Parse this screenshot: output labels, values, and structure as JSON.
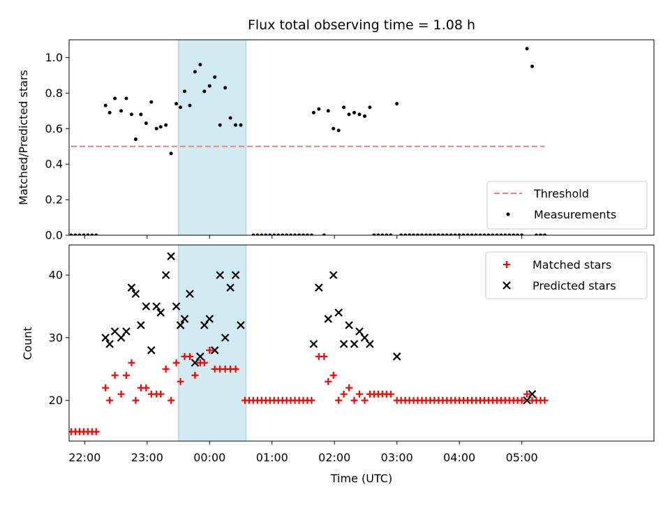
{
  "chart_data": [
    {
      "type": "scatter",
      "title": "Flux total observing time = 1.08 h",
      "ylabel": "Matched/Predicted stars",
      "ylim": [
        0,
        1.1
      ],
      "yticks": [
        0.0,
        0.2,
        0.4,
        0.6,
        0.8,
        1.0
      ],
      "ytick_labels": [
        "0.0",
        "0.2",
        "0.4",
        "0.6",
        "0.8",
        "1.0"
      ],
      "xlim": [
        -135,
        427
      ],
      "x_unit": "minutes relative to 00:00 UTC",
      "shaded_span": [
        -30,
        35
      ],
      "shaded_color": "#add8e6",
      "threshold": {
        "name": "Threshold",
        "value": 0.5,
        "x_range": [
          -133,
          322
        ],
        "color": "#f08080"
      },
      "legend": {
        "position": "lower-right",
        "entries": [
          "Threshold",
          "Measurements"
        ]
      },
      "series": [
        {
          "name": "Measurements",
          "color": "#000000",
          "points": [
            [
              -133,
              0
            ],
            [
              -129,
              0
            ],
            [
              -125,
              0
            ],
            [
              -121,
              0
            ],
            [
              -117,
              0
            ],
            [
              -113,
              0
            ],
            [
              -109,
              0
            ],
            [
              -100,
              0.73
            ],
            [
              -96,
              0.69
            ],
            [
              -91,
              0.77
            ],
            [
              -85,
              0.7
            ],
            [
              -80,
              0.77
            ],
            [
              -75,
              0.68
            ],
            [
              -71,
              0.54
            ],
            [
              -66,
              0.68
            ],
            [
              -61,
              0.63
            ],
            [
              -56,
              0.75
            ],
            [
              -51,
              0.6
            ],
            [
              -47,
              0.61
            ],
            [
              -42,
              0.62
            ],
            [
              -37,
              0.46
            ],
            [
              -32,
              0.74
            ],
            [
              -28,
              0.72
            ],
            [
              -24,
              0.81
            ],
            [
              -19,
              0.73
            ],
            [
              -14,
              0.92
            ],
            [
              -9,
              0.96
            ],
            [
              -5,
              0.81
            ],
            [
              0,
              0.84
            ],
            [
              5,
              0.89
            ],
            [
              10,
              0.62
            ],
            [
              15,
              0.83
            ],
            [
              20,
              0.66
            ],
            [
              25,
              0.62
            ],
            [
              30,
              0.62
            ],
            [
              42,
              0
            ],
            [
              46,
              0
            ],
            [
              50,
              0
            ],
            [
              54,
              0
            ],
            [
              58,
              0
            ],
            [
              62,
              0
            ],
            [
              66,
              0
            ],
            [
              70,
              0
            ],
            [
              74,
              0
            ],
            [
              78,
              0
            ],
            [
              82,
              0
            ],
            [
              86,
              0
            ],
            [
              90,
              0
            ],
            [
              94,
              0
            ],
            [
              98,
              0
            ],
            [
              100,
              0.69
            ],
            [
              105,
              0.71
            ],
            [
              110,
              0
            ],
            [
              114,
              0.7
            ],
            [
              119,
              0.6
            ],
            [
              124,
              0.59
            ],
            [
              129,
              0.72
            ],
            [
              134,
              0.68
            ],
            [
              139,
              0.69
            ],
            [
              144,
              0.68
            ],
            [
              149,
              0.67
            ],
            [
              154,
              0.72
            ],
            [
              158,
              0
            ],
            [
              162,
              0
            ],
            [
              166,
              0
            ],
            [
              170,
              0
            ],
            [
              174,
              0
            ],
            [
              180,
              0.74
            ],
            [
              184,
              0
            ],
            [
              188,
              0
            ],
            [
              192,
              0
            ],
            [
              196,
              0
            ],
            [
              200,
              0
            ],
            [
              204,
              0
            ],
            [
              208,
              0
            ],
            [
              212,
              0
            ],
            [
              216,
              0
            ],
            [
              220,
              0
            ],
            [
              224,
              0
            ],
            [
              228,
              0
            ],
            [
              232,
              0
            ],
            [
              236,
              0
            ],
            [
              240,
              0
            ],
            [
              244,
              0
            ],
            [
              248,
              0
            ],
            [
              252,
              0
            ],
            [
              256,
              0
            ],
            [
              260,
              0
            ],
            [
              264,
              0
            ],
            [
              268,
              0
            ],
            [
              272,
              0
            ],
            [
              276,
              0
            ],
            [
              280,
              0
            ],
            [
              284,
              0
            ],
            [
              288,
              0
            ],
            [
              292,
              0
            ],
            [
              296,
              0
            ],
            [
              300,
              0
            ],
            [
              305,
              1.05
            ],
            [
              310,
              0.95
            ],
            [
              314,
              0
            ],
            [
              318,
              0
            ],
            [
              322,
              0
            ]
          ]
        }
      ]
    },
    {
      "type": "scatter",
      "xlabel": "Time (UTC)",
      "ylabel": "Count",
      "ylim": [
        13.5,
        44.8
      ],
      "yticks": [
        20,
        30,
        40
      ],
      "ytick_labels": [
        "20",
        "30",
        "40"
      ],
      "xlim": [
        -135,
        427
      ],
      "x_unit": "minutes relative to 00:00 UTC",
      "xticks": [
        -120,
        -60,
        0,
        60,
        120,
        180,
        240,
        300
      ],
      "xtick_labels": [
        "22:00",
        "23:00",
        "00:00",
        "01:00",
        "02:00",
        "03:00",
        "04:00",
        "05:00"
      ],
      "shaded_span": [
        -30,
        35
      ],
      "shaded_color": "#add8e6",
      "legend": {
        "position": "top-right",
        "entries": [
          "Matched stars",
          "Predicted stars"
        ]
      },
      "series": [
        {
          "name": "Matched stars",
          "marker": "plus",
          "color": "#ff0000",
          "points": [
            [
              -133,
              15
            ],
            [
              -129,
              15
            ],
            [
              -125,
              15
            ],
            [
              -121,
              15
            ],
            [
              -117,
              15
            ],
            [
              -113,
              15
            ],
            [
              -109,
              15
            ],
            [
              -100,
              22
            ],
            [
              -96,
              20
            ],
            [
              -91,
              24
            ],
            [
              -85,
              21
            ],
            [
              -80,
              24
            ],
            [
              -75,
              26
            ],
            [
              -71,
              20
            ],
            [
              -66,
              22
            ],
            [
              -61,
              22
            ],
            [
              -56,
              21
            ],
            [
              -51,
              21
            ],
            [
              -47,
              21
            ],
            [
              -42,
              25
            ],
            [
              -37,
              20
            ],
            [
              -32,
              26
            ],
            [
              -28,
              23
            ],
            [
              -24,
              27
            ],
            [
              -19,
              27
            ],
            [
              -14,
              24
            ],
            [
              -9,
              26
            ],
            [
              -5,
              26
            ],
            [
              0,
              28
            ],
            [
              5,
              25
            ],
            [
              10,
              25
            ],
            [
              15,
              25
            ],
            [
              20,
              25
            ],
            [
              25,
              25
            ],
            [
              34,
              20
            ],
            [
              38,
              20
            ],
            [
              42,
              20
            ],
            [
              46,
              20
            ],
            [
              50,
              20
            ],
            [
              54,
              20
            ],
            [
              58,
              20
            ],
            [
              62,
              20
            ],
            [
              66,
              20
            ],
            [
              70,
              20
            ],
            [
              74,
              20
            ],
            [
              78,
              20
            ],
            [
              82,
              20
            ],
            [
              86,
              20
            ],
            [
              90,
              20
            ],
            [
              94,
              20
            ],
            [
              98,
              20
            ],
            [
              105,
              27
            ],
            [
              110,
              27
            ],
            [
              114,
              23
            ],
            [
              119,
              24
            ],
            [
              124,
              20
            ],
            [
              129,
              21
            ],
            [
              134,
              22
            ],
            [
              139,
              20
            ],
            [
              144,
              21
            ],
            [
              149,
              20
            ],
            [
              154,
              21
            ],
            [
              158,
              21
            ],
            [
              162,
              21
            ],
            [
              166,
              21
            ],
            [
              170,
              21
            ],
            [
              174,
              21
            ],
            [
              180,
              20
            ],
            [
              184,
              20
            ],
            [
              188,
              20
            ],
            [
              192,
              20
            ],
            [
              196,
              20
            ],
            [
              200,
              20
            ],
            [
              204,
              20
            ],
            [
              208,
              20
            ],
            [
              212,
              20
            ],
            [
              216,
              20
            ],
            [
              220,
              20
            ],
            [
              224,
              20
            ],
            [
              228,
              20
            ],
            [
              232,
              20
            ],
            [
              236,
              20
            ],
            [
              240,
              20
            ],
            [
              244,
              20
            ],
            [
              248,
              20
            ],
            [
              252,
              20
            ],
            [
              256,
              20
            ],
            [
              260,
              20
            ],
            [
              264,
              20
            ],
            [
              268,
              20
            ],
            [
              272,
              20
            ],
            [
              276,
              20
            ],
            [
              280,
              20
            ],
            [
              284,
              20
            ],
            [
              288,
              20
            ],
            [
              292,
              20
            ],
            [
              296,
              20
            ],
            [
              300,
              20
            ],
            [
              305,
              21
            ],
            [
              310,
              20
            ],
            [
              314,
              20
            ],
            [
              318,
              20
            ],
            [
              322,
              20
            ]
          ]
        },
        {
          "name": "Predicted stars",
          "marker": "x",
          "color": "#000000",
          "points": [
            [
              -100,
              30
            ],
            [
              -96,
              29
            ],
            [
              -91,
              31
            ],
            [
              -85,
              30
            ],
            [
              -80,
              31
            ],
            [
              -75,
              38
            ],
            [
              -71,
              37
            ],
            [
              -66,
              32
            ],
            [
              -61,
              35
            ],
            [
              -56,
              28
            ],
            [
              -51,
              35
            ],
            [
              -47,
              34
            ],
            [
              -42,
              40
            ],
            [
              -37,
              43
            ],
            [
              -32,
              35
            ],
            [
              -28,
              32
            ],
            [
              -24,
              33
            ],
            [
              -19,
              37
            ],
            [
              -14,
              26
            ],
            [
              -9,
              27
            ],
            [
              -5,
              32
            ],
            [
              0,
              33
            ],
            [
              5,
              28
            ],
            [
              10,
              40
            ],
            [
              15,
              30
            ],
            [
              20,
              38
            ],
            [
              25,
              40
            ],
            [
              30,
              32
            ],
            [
              100,
              29
            ],
            [
              105,
              38
            ],
            [
              114,
              33
            ],
            [
              119,
              40
            ],
            [
              124,
              34
            ],
            [
              129,
              29
            ],
            [
              134,
              32
            ],
            [
              139,
              29
            ],
            [
              144,
              31
            ],
            [
              149,
              30
            ],
            [
              154,
              29
            ],
            [
              180,
              27
            ],
            [
              305,
              20
            ],
            [
              310,
              21
            ]
          ]
        }
      ]
    }
  ]
}
